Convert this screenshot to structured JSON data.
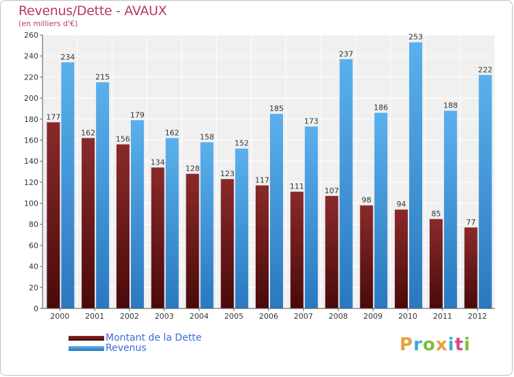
{
  "header": {
    "title": "Revenus/Dette - AVAUX",
    "subtitle": "(en milliers d'€)"
  },
  "legend": {
    "dette_label": "Montant de la Dette",
    "revenus_label": "Revenus"
  },
  "logo": {
    "text": "Proxiti",
    "letters": [
      "P",
      "r",
      "o",
      "x",
      "i",
      "t",
      "i"
    ],
    "colors": [
      "#e8a13a",
      "#3fa9d6",
      "#7cbf3a",
      "#e8a13a",
      "#3fa9d6",
      "#d44a8a",
      "#7cbf3a"
    ]
  },
  "colors": {
    "dette_top": "#8a2a2a",
    "dette_bottom": "#4a0a0a",
    "revenus_top": "#5ab0ec",
    "revenus_bottom": "#2a78c0",
    "title": "#b8386a",
    "legend_text": "#3a6bd6"
  },
  "chart_data": {
    "type": "bar",
    "title": "Revenus/Dette - AVAUX",
    "subtitle": "(en milliers d'€)",
    "xlabel": "",
    "ylabel": "",
    "ylim": [
      0,
      260
    ],
    "ytick_step": 20,
    "grid": true,
    "legend_position": "bottom-left",
    "categories": [
      "2000",
      "2001",
      "2002",
      "2003",
      "2004",
      "2005",
      "2006",
      "2007",
      "2008",
      "2009",
      "2010",
      "2011",
      "2012"
    ],
    "series": [
      {
        "name": "Montant de la Dette",
        "values": [
          177,
          162,
          156,
          134,
          128,
          123,
          117,
          111,
          107,
          98,
          94,
          85,
          77
        ]
      },
      {
        "name": "Revenus",
        "values": [
          234,
          215,
          179,
          162,
          158,
          152,
          185,
          173,
          237,
          186,
          253,
          188,
          222
        ]
      }
    ]
  }
}
